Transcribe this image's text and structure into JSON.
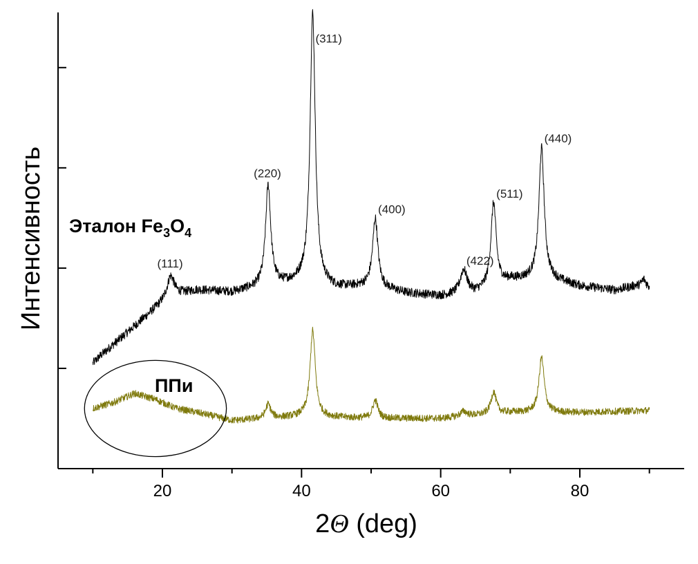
{
  "chart_data": {
    "type": "line",
    "xlabel": {
      "prefix": "2",
      "symbol": "Θ",
      "unit": " (deg)"
    },
    "ylabel": "Интенсивность",
    "xlim": [
      5,
      95
    ],
    "x_ticks": [
      20,
      40,
      60,
      80
    ],
    "x_tick_labels": [
      "20",
      "40",
      "60",
      "80"
    ],
    "y_ticks": [
      1,
      2,
      3,
      4
    ],
    "y_tick_labels_shown": false,
    "ylim": [
      0,
      4.55
    ],
    "grid": false,
    "colors": {
      "reference": "#000000",
      "sample": "#7f7a0d",
      "axis": "#000000",
      "ellipse": "#000000"
    },
    "series": [
      {
        "name": "Эталон Fe3O4",
        "label": {
          "main": "Эталон Fe",
          "sub1": "3",
          "mid": "O",
          "sub2": "4"
        },
        "color": "#000000",
        "baseline": [
          [
            10,
            1.05
          ],
          [
            11,
            1.12
          ],
          [
            13,
            1.24
          ],
          [
            16,
            1.42
          ],
          [
            19,
            1.6
          ],
          [
            21,
            1.72
          ],
          [
            25,
            1.78
          ],
          [
            30,
            1.76
          ],
          [
            35,
            1.82
          ],
          [
            40,
            1.86
          ],
          [
            45,
            1.8
          ],
          [
            50,
            1.82
          ],
          [
            55,
            1.75
          ],
          [
            60,
            1.72
          ],
          [
            65,
            1.75
          ],
          [
            70,
            1.88
          ],
          [
            75,
            1.9
          ],
          [
            80,
            1.82
          ],
          [
            85,
            1.78
          ],
          [
            88,
            1.82
          ],
          [
            90,
            1.8
          ]
        ],
        "noise": 0.045,
        "peaks": [
          {
            "x": 21.2,
            "height": 0.2,
            "width": 0.6,
            "label": "(111)"
          },
          {
            "x": 35.2,
            "height": 1.0,
            "width": 0.45,
            "label": "(220)"
          },
          {
            "x": 41.6,
            "height": 2.7,
            "width": 0.45,
            "label": "(311)"
          },
          {
            "x": 50.6,
            "height": 0.68,
            "width": 0.45,
            "label": "(400)"
          },
          {
            "x": 63.3,
            "height": 0.24,
            "width": 0.6,
            "label": "(422)"
          },
          {
            "x": 67.6,
            "height": 0.83,
            "width": 0.45,
            "label": "(511)"
          },
          {
            "x": 74.5,
            "height": 1.3,
            "width": 0.45,
            "label": "(440)"
          },
          {
            "x": 89.2,
            "height": 0.08,
            "width": 0.4,
            "label": ""
          }
        ]
      },
      {
        "name": "ППи",
        "label": {
          "main": "ППи"
        },
        "color": "#7f7a0d",
        "baseline": [
          [
            10,
            0.6
          ],
          [
            13,
            0.66
          ],
          [
            16,
            0.75
          ],
          [
            19,
            0.69
          ],
          [
            22,
            0.6
          ],
          [
            25,
            0.56
          ],
          [
            30,
            0.48
          ],
          [
            35,
            0.5
          ],
          [
            40,
            0.52
          ],
          [
            50,
            0.5
          ],
          [
            60,
            0.5
          ],
          [
            70,
            0.56
          ],
          [
            80,
            0.56
          ],
          [
            90,
            0.58
          ]
        ],
        "noise": 0.035,
        "peaks": [
          {
            "x": 35.2,
            "height": 0.14,
            "width": 0.45
          },
          {
            "x": 41.6,
            "height": 0.86,
            "width": 0.45
          },
          {
            "x": 50.6,
            "height": 0.18,
            "width": 0.45
          },
          {
            "x": 63.3,
            "height": 0.05,
            "width": 0.6
          },
          {
            "x": 67.6,
            "height": 0.22,
            "width": 0.45
          },
          {
            "x": 74.5,
            "height": 0.55,
            "width": 0.45
          }
        ],
        "highlight_ellipse": {
          "center_x": 19,
          "center_y": 0.6,
          "radius_x": 10.2,
          "radius_y": 0.48
        }
      }
    ]
  }
}
